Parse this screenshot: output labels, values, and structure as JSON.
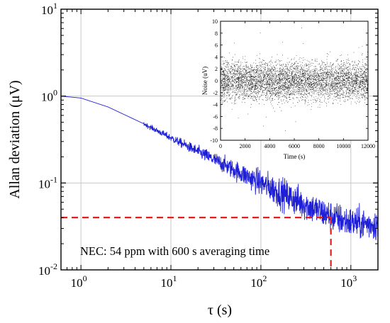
{
  "chart_data": [
    {
      "type": "line",
      "xlabel": "τ (s)",
      "ylabel": "Allan deviation (μV)",
      "xscale": "log",
      "yscale": "log",
      "xlim": [
        0.6,
        2000
      ],
      "ylim": [
        0.01,
        10
      ],
      "x_ticks": [
        {
          "base": "10",
          "exp": "0",
          "value": 1
        },
        {
          "base": "10",
          "exp": "1",
          "value": 10
        },
        {
          "base": "10",
          "exp": "2",
          "value": 100
        },
        {
          "base": "10",
          "exp": "3",
          "value": 1000
        }
      ],
      "y_ticks": [
        {
          "base": "10",
          "exp": "-2",
          "value": 0.01
        },
        {
          "base": "10",
          "exp": "-1",
          "value": 0.1
        },
        {
          "base": "10",
          "exp": "0",
          "value": 1
        },
        {
          "base": "10",
          "exp": "1",
          "value": 10
        }
      ],
      "grid": true,
      "series": [
        {
          "color": "#1f1fd6",
          "x": [
            0.6,
            1,
            2,
            5,
            10,
            20,
            50,
            100,
            200,
            400,
            600,
            1000,
            2000
          ],
          "y": [
            1.0,
            0.95,
            0.75,
            0.48,
            0.33,
            0.23,
            0.142,
            0.1,
            0.07,
            0.05,
            0.041,
            0.035,
            0.033
          ]
        }
      ],
      "threshold": {
        "color": "#e02020",
        "y": 0.04,
        "x": 600
      },
      "annotation": "NEC: 54 ppm with 600 s averaging time"
    },
    {
      "type": "scatter",
      "inset": true,
      "xlabel": "Time (s)",
      "ylabel": "Noise (uV)",
      "xlim": [
        0,
        12000
      ],
      "ylim": [
        -10,
        10
      ],
      "x_ticks": [
        0,
        2000,
        4000,
        6000,
        8000,
        10000,
        12000
      ],
      "y_ticks": [
        -10,
        -8,
        -6,
        -4,
        -2,
        0,
        2,
        4,
        6,
        8,
        10
      ],
      "noise_std": 1.6,
      "color": "#000000"
    }
  ]
}
